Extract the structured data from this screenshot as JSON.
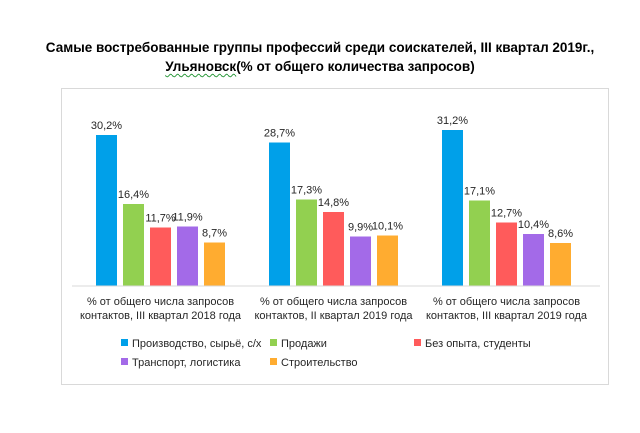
{
  "title_line1": "Самые востребованные группы профессий среди соискателей, III квартал 2019г.,",
  "title_line2_place": "Ульяновск",
  "title_line2_rest": "(% от общего количества запросов)",
  "chart_data": {
    "type": "bar",
    "title": "Самые востребованные группы профессий среди соискателей, III квартал 2019г., Ульяновск(% от общего количества запросов)",
    "categories": [
      [
        "% от общего числа запросов",
        "контактов, III квартал 2018 года"
      ],
      [
        "% от общего числа запросов",
        "контактов, II квартал 2019 года"
      ],
      [
        "% от общего числа запросов",
        "контактов, III квартал 2019 года"
      ]
    ],
    "series": [
      {
        "name": "Производство, сырьё, с/х",
        "color": "#00a0e9",
        "values": [
          30.2,
          28.7,
          31.2
        ],
        "labels": [
          "30,2%",
          "28,7%",
          "31,2%"
        ]
      },
      {
        "name": "Продажи",
        "color": "#92d050",
        "values": [
          16.4,
          17.3,
          17.1
        ],
        "labels": [
          "16,4%",
          "17,3%",
          "17,1%"
        ]
      },
      {
        "name": "Без опыта, студенты",
        "color": "#ff5b5b",
        "values": [
          11.7,
          14.8,
          12.7
        ],
        "labels": [
          "11,7%",
          "14,8%",
          "12,7%"
        ]
      },
      {
        "name": "Транспорт, логистика",
        "color": "#a36ae8",
        "values": [
          11.9,
          9.9,
          10.4
        ],
        "labels": [
          "11,9%",
          "9,9%",
          "10,4%"
        ]
      },
      {
        "name": "Строительство",
        "color": "#ffac30",
        "values": [
          8.7,
          10.1,
          8.6
        ],
        "labels": [
          "8,7%",
          "10,1%",
          "8,6%"
        ]
      }
    ],
    "ylim": [
      0,
      33
    ],
    "xlabel": "",
    "ylabel": "",
    "legend": "bottom"
  }
}
